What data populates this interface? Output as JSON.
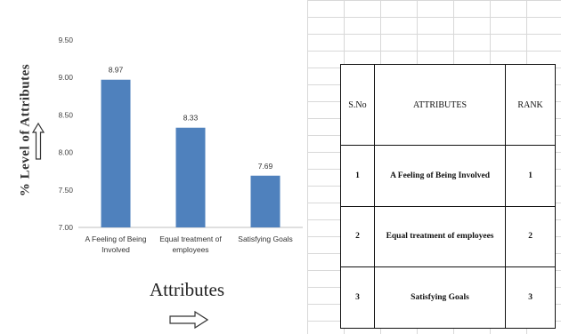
{
  "chart_data": {
    "type": "bar",
    "categories": [
      "A Feeling of Being Involved",
      "Equal treatment of employees",
      "Satisfying Goals"
    ],
    "category_lines": [
      [
        "A Feeling of Being",
        "Involved"
      ],
      [
        "Equal treatment of",
        "employees"
      ],
      [
        "Satisfying Goals"
      ]
    ],
    "values": [
      8.97,
      8.33,
      7.69
    ],
    "data_labels": [
      "8.97",
      "8.33",
      "7.69"
    ],
    "ylim": [
      7.0,
      9.5
    ],
    "yticks": [
      7.0,
      7.5,
      8.0,
      8.5,
      9.0,
      9.5
    ],
    "ytick_labels": [
      "7.00",
      "7.50",
      "8.00",
      "8.50",
      "9.00",
      "9.50"
    ],
    "xlabel": "Attributes",
    "ylabel": "% Level of Attributes",
    "bar_color": "#4f81bd",
    "grid": false,
    "legend": false
  },
  "table": {
    "headers": [
      "S.No",
      "ATTRIBUTES",
      "RANK"
    ],
    "rows": [
      [
        "1",
        "A Feeling of Being Involved",
        "1"
      ],
      [
        "2",
        "Equal treatment of  employees",
        "2"
      ],
      [
        "3",
        "Satisfying Goals",
        "3"
      ]
    ]
  },
  "icons": {
    "y_arrow": "up-arrow-outline-icon",
    "x_arrow": "right-arrow-outline-icon"
  }
}
